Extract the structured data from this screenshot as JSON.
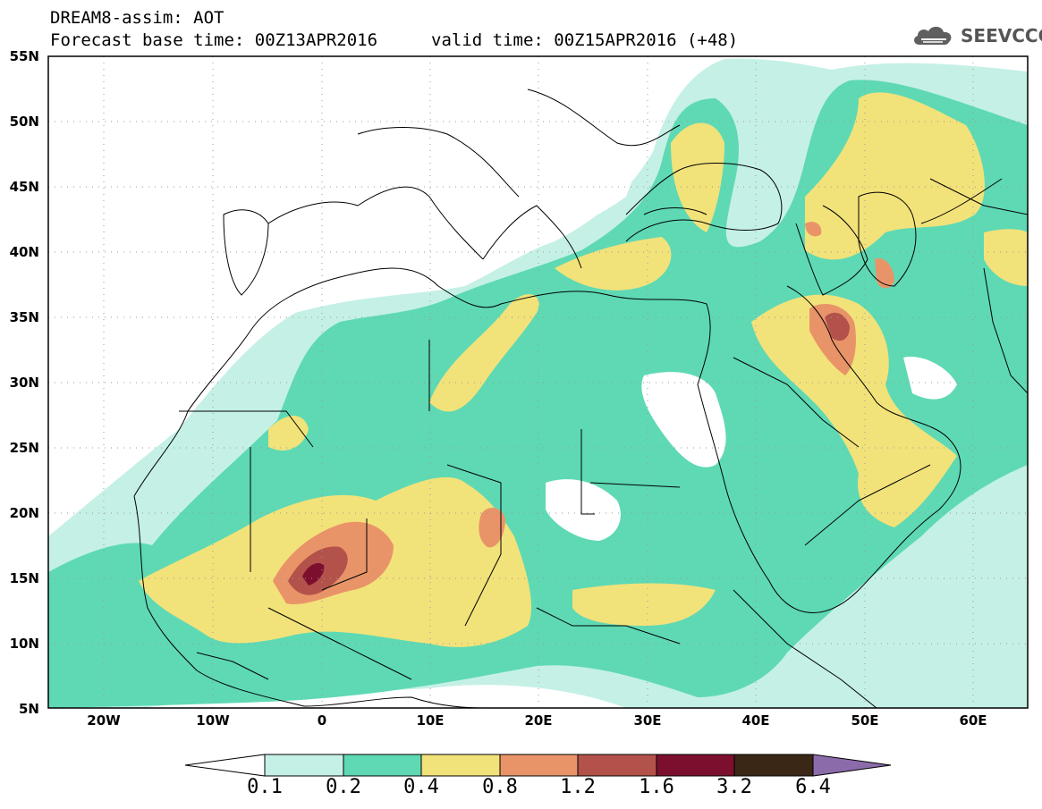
{
  "header": {
    "model": "DREAM8-assim: AOT",
    "base_time": "Forecast base time: 00Z13APR2016",
    "valid_time": "valid time: 00Z15APR2016 (+48)"
  },
  "logo": {
    "text": "SEEVCCC",
    "icon": "cloud-icon"
  },
  "map": {
    "lat_ticks": [
      "55N",
      "50N",
      "45N",
      "40N",
      "35N",
      "30N",
      "25N",
      "20N",
      "15N",
      "10N",
      "5N"
    ],
    "lon_ticks": [
      "20W",
      "10W",
      "0",
      "10E",
      "20E",
      "30E",
      "40E",
      "50E",
      "60E"
    ],
    "lon_range": [
      -25,
      65
    ],
    "lat_range": [
      5,
      55
    ],
    "grid": "dotted"
  },
  "colorbar": {
    "labels": [
      "0.1",
      "0.2",
      "0.4",
      "0.8",
      "1.2",
      "1.6",
      "3.2",
      "6.4"
    ],
    "colors": [
      "#ffffff",
      "#c5f0e6",
      "#5ed9b4",
      "#f2e27a",
      "#e89468",
      "#b3524a",
      "#7d0f2e",
      "#3a2716",
      "#8c6bab"
    ]
  }
}
